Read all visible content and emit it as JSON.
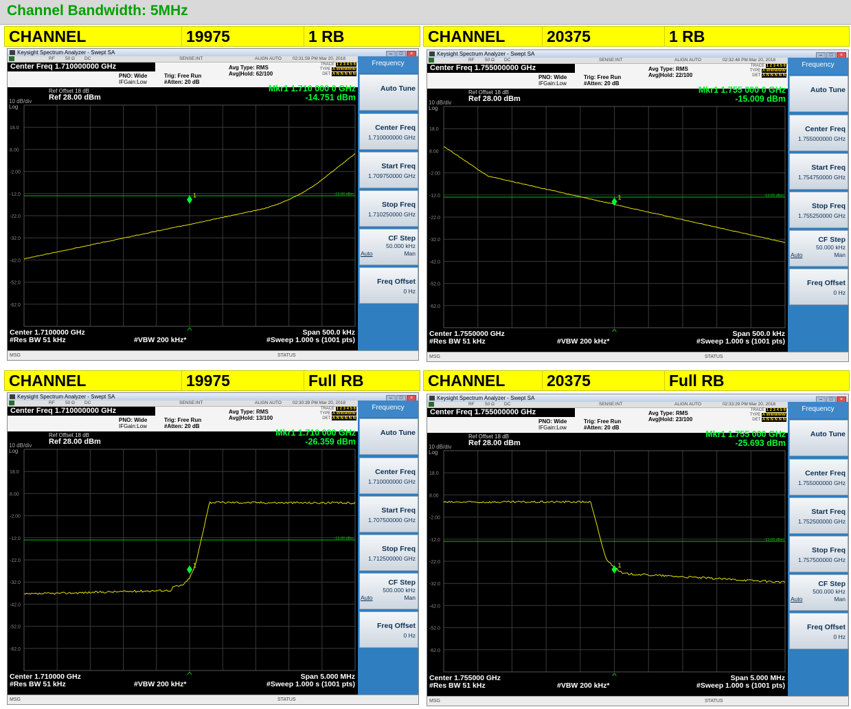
{
  "banner": "Channel Bandwidth: 5MHz",
  "window_title": "Keysight Spectrum Analyzer - Swept SA",
  "labels": {
    "rf": "RF",
    "ohm": "50 Ω",
    "dc": "DC",
    "sense": "SENSE:INT",
    "align": "ALIGN AUTO",
    "pno": "PNO: Wide",
    "ifgain": "IFGain:Low",
    "trig": "Trig: Free Run",
    "atten": "#Atten: 20 dB",
    "avg_type": "Avg Type: RMS",
    "trace": "TRACE",
    "type": "TYPE",
    "det": "DET",
    "trace_nums": "1 2 3 4 5 6",
    "type_vals": "A WWWWW",
    "det_vals": "A N N N N N",
    "ref_offset": "Ref Offset 18 dB",
    "ref": "Ref 28.00 dBm",
    "dbdiv": "10 dB/div",
    "log": "Log",
    "limit": "-13.00 dBm",
    "marker_num": "1",
    "msg": "MSG",
    "status": "STATUS",
    "rbw": "#Res BW 51 kHz",
    "vbw": "#VBW 200 kHz*",
    "sweep": "#Sweep  1.000 s (1001 pts)",
    "menu": "Frequency",
    "auto_tune": "Auto Tune",
    "center_freq": "Center Freq",
    "start_freq": "Start Freq",
    "stop_freq": "Stop Freq",
    "cf_step": "CF Step",
    "auto": "Auto",
    "man": "Man",
    "freq_offset": "Freq Offset",
    "zero_hz": "0 Hz"
  },
  "y_ticks": [
    "18.0",
    "8.00",
    "-2.00",
    "-12.0",
    "-22.0",
    "-32.0",
    "-42.0",
    "-52.0",
    "-62.0"
  ],
  "panels": [
    {
      "header": [
        "CHANNEL",
        "19975",
        "1 RB"
      ],
      "time": "02:31:59 PM Mar 20, 2018",
      "center_freq": "Center Freq 1.710000000 GHz",
      "avg_hold": "Avg|Hold: 62/100",
      "mkr_freq": "Mkr1 1.710 000 0 GHz",
      "mkr_amp": "-14.751 dBm",
      "center": "Center 1.7100000 GHz",
      "span": "Span 500.0 kHz",
      "sk_center": "1.710000000 GHz",
      "sk_start": "1.709750000 GHz",
      "sk_stop": "1.710250000 GHz",
      "sk_cfstep": "50.000 kHz",
      "marker_x_frac": 0.5,
      "marker_dbm": -14.751,
      "trace_shape": "rising_rb"
    },
    {
      "header": [
        "CHANNEL",
        "20375",
        "1 RB"
      ],
      "time": "02:32:48 PM Mar 20, 2018",
      "center_freq": "Center Freq 1.755000000 GHz",
      "avg_hold": "Avg|Hold: 22/100",
      "mkr_freq": "Mkr1 1.755 000 0 GHz",
      "mkr_amp": "-15.009 dBm",
      "center": "Center 1.7550000 GHz",
      "span": "Span 500.0 kHz",
      "sk_center": "1.755000000 GHz",
      "sk_start": "1.754750000 GHz",
      "sk_stop": "1.755250000 GHz",
      "sk_cfstep": "50.000 kHz",
      "marker_x_frac": 0.5,
      "marker_dbm": -15.009,
      "trace_shape": "falling_rb"
    },
    {
      "header": [
        "CHANNEL",
        "19975",
        "Full RB"
      ],
      "time": "02:30:39 PM Mar 20, 2018",
      "center_freq": "Center Freq 1.710000000 GHz",
      "avg_hold": "Avg|Hold: 13/100",
      "mkr_freq": "Mkr1 1.710 000 GHz",
      "mkr_amp": "-26.359 dBm",
      "center": "Center 1.710000 GHz",
      "span": "Span 5.000 MHz",
      "sk_center": "1.710000000 GHz",
      "sk_start": "1.707500000 GHz",
      "sk_stop": "1.712500000 GHz",
      "sk_cfstep": "500.000 kHz",
      "marker_x_frac": 0.5,
      "marker_dbm": -26.359,
      "trace_shape": "rising_full"
    },
    {
      "header": [
        "CHANNEL",
        "20375",
        "Full RB"
      ],
      "time": "02:33:29 PM Mar 20, 2018",
      "center_freq": "Center Freq 1.755000000 GHz",
      "avg_hold": "Avg|Hold: 23/100",
      "mkr_freq": "Mkr1 1.755 000 GHz",
      "mkr_amp": "-25.693 dBm",
      "center": "Center 1.755000 GHz",
      "span": "Span 5.000 MHz",
      "sk_center": "1.755000000 GHz",
      "sk_start": "1.752500000 GHz",
      "sk_stop": "1.757500000 GHz",
      "sk_cfstep": "500.000 kHz",
      "marker_x_frac": 0.5,
      "marker_dbm": -25.693,
      "trace_shape": "falling_full"
    }
  ],
  "colors": {
    "trace": "#e6e600",
    "limit": "#00c800",
    "marker": "#00ff33",
    "header_bg": "#ffff00",
    "banner_text": "#00a000"
  }
}
